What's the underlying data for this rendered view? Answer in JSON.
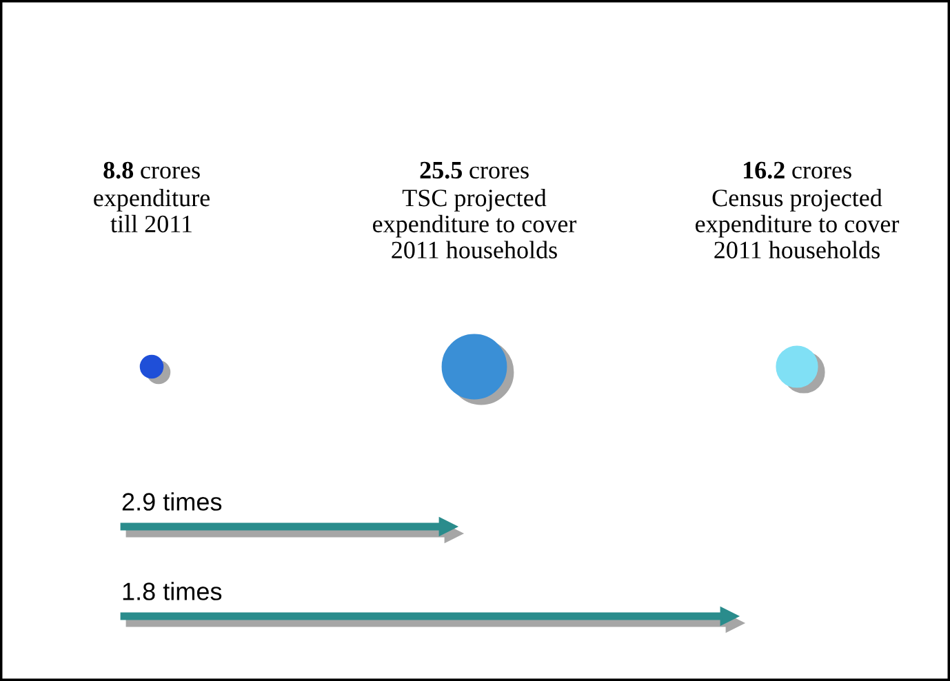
{
  "chart_data": {
    "type": "other",
    "categories": [
      "crores\nexpenditure\ntill 2011",
      "crores\nTSC projected\nexpenditure to cover\n2011 households",
      "crores\nCensus projected\nexpenditure to cover\n2011 households"
    ],
    "values": [
      8.8,
      25.5,
      16.2
    ],
    "colors": [
      "#1f4fd8",
      "#3a8fd6",
      "#80e0f5"
    ],
    "data_labels": true,
    "annotations": [
      "2.9 times",
      "1.8 times"
    ]
  }
}
